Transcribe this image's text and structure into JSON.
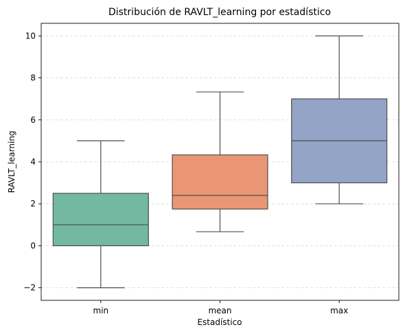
{
  "chart_data": {
    "type": "boxplot",
    "title": "Distribución de RAVLT_learning por estadístico",
    "xlabel": "Estadístico",
    "ylabel": "RAVLT_learning",
    "ylim": [
      -2.6,
      10.6
    ],
    "yticks": [
      -2,
      0,
      2,
      4,
      6,
      8,
      10
    ],
    "ytick_labels": [
      "−2",
      "0",
      "2",
      "4",
      "6",
      "8",
      "10"
    ],
    "grid": "y-dashed",
    "categories": [
      "min",
      "mean",
      "max"
    ],
    "boxes": [
      {
        "category": "min",
        "whisker_low": -2,
        "q1": 0,
        "median": 1,
        "q3": 2.5,
        "whisker_high": 5,
        "color": "#73b8a0"
      },
      {
        "category": "mean",
        "whisker_low": 0.67,
        "q1": 1.75,
        "median": 2.4,
        "q3": 4.33,
        "whisker_high": 7.33,
        "color": "#ea9675"
      },
      {
        "category": "max",
        "whisker_low": 2,
        "q1": 3,
        "median": 5,
        "q3": 7,
        "whisker_high": 10,
        "color": "#93a4c6"
      }
    ]
  }
}
